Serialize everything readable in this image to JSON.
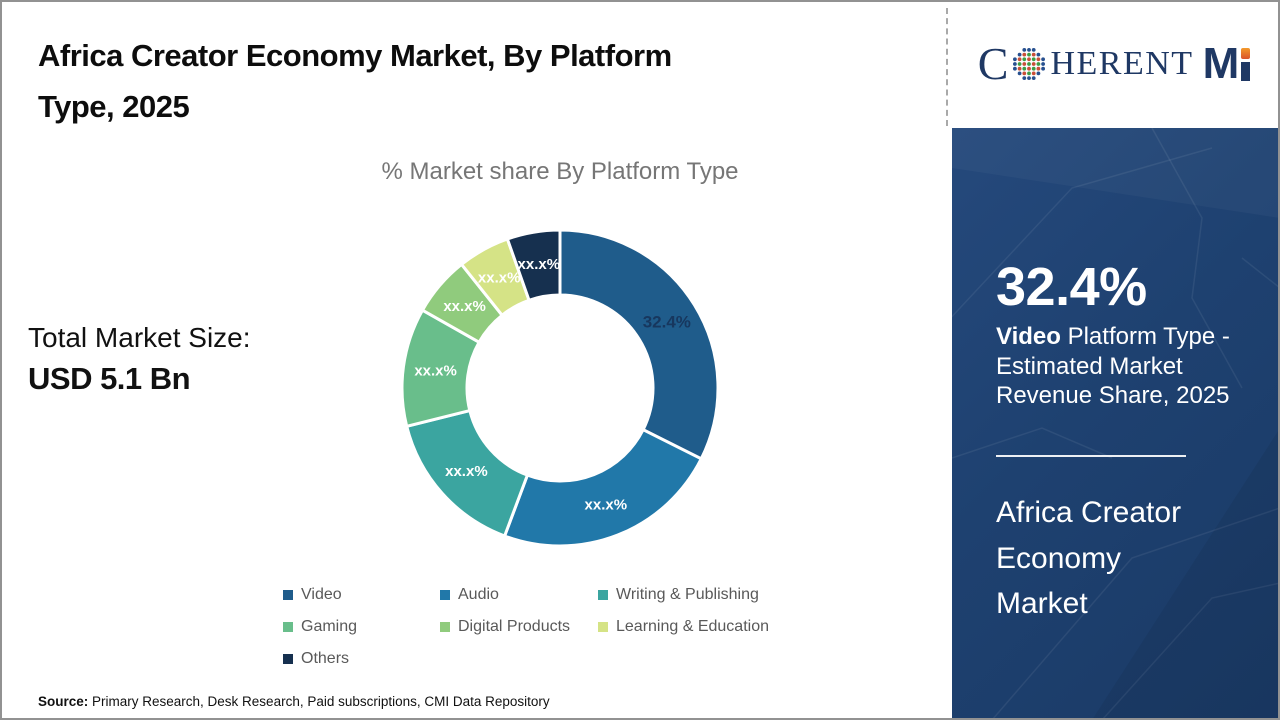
{
  "header": {
    "title_line1": "Africa Creator Economy Market, By Platform",
    "title_line2": "Type, 2025"
  },
  "logo": {
    "letter_c": "C",
    "letters_rest": "HERENT",
    "letter_m": "M",
    "navy": "#1F3864",
    "globe_blue": "#27508F",
    "globe_green": "#3D9C44",
    "globe_red": "#C94F38",
    "i_top_orange": "#F39A2B",
    "i_bottom_orange": "#D9532B"
  },
  "stats": {
    "total_label": "Total Market Size:",
    "total_value": "USD 5.1 Bn"
  },
  "chart_data": {
    "type": "pie",
    "subtype": "donut",
    "title": "% Market share By Platform Type",
    "inner_radius_ratio": 0.59,
    "start_angle_deg": 0,
    "direction": "clockwise",
    "legend_position": "bottom",
    "slices": [
      {
        "name": "Video",
        "value": 32.4,
        "label": "32.4%",
        "color": "#1F5C8B",
        "label_color": "#17375E",
        "label_size": 17
      },
      {
        "name": "Audio",
        "value": 23.3,
        "label": "xx.x%",
        "color": "#2178A9",
        "label_color": "#FFFFFF",
        "label_size": 15
      },
      {
        "name": "Writing & Publishing",
        "value": 15.4,
        "label": "xx.x%",
        "color": "#3BA5A0",
        "label_color": "#FFFFFF",
        "label_size": 15
      },
      {
        "name": "Gaming",
        "value": 12.1,
        "label": "xx.x%",
        "color": "#69BE8B",
        "label_color": "#FFFFFF",
        "label_size": 15
      },
      {
        "name": "Digital Products",
        "value": 6.1,
        "label": "xx.x%",
        "color": "#90CB7D",
        "label_color": "#FFFFFF",
        "label_size": 15
      },
      {
        "name": "Learning & Education",
        "value": 5.3,
        "label": "xx.x%",
        "color": "#D5E386",
        "label_color": "#FFFFFF",
        "label_size": 15
      },
      {
        "name": "Others",
        "value": 5.4,
        "label": "xx.x%",
        "color": "#16304F",
        "label_color": "#FFFFFF",
        "label_size": 15
      }
    ]
  },
  "sidebar": {
    "stat_value": "32.4%",
    "desc_highlight": "Video",
    "desc_rest": " Platform Type - Estimated Market Revenue Share, 2025",
    "heading": "Africa Creator Economy Market",
    "bg_color": "#1E4170"
  },
  "source": {
    "prefix": "Source:",
    "text": " Primary Research, Desk Research, Paid subscriptions, CMI Data Repository"
  }
}
